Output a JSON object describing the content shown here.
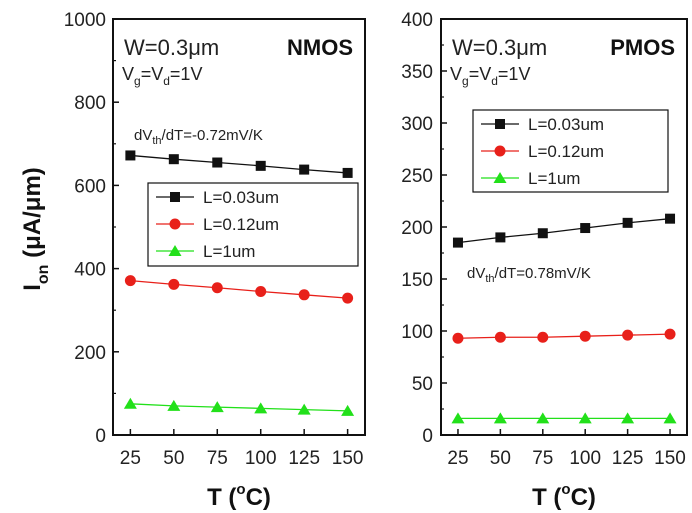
{
  "chart_data": [
    {
      "type": "line",
      "title": "NMOS",
      "x": [
        25,
        50,
        75,
        100,
        125,
        150
      ],
      "xlim": [
        15,
        160
      ],
      "ylim": [
        0,
        1000
      ],
      "x_ticks": [
        "25",
        "50",
        "75",
        "100",
        "125",
        "150"
      ],
      "y_ticks": [
        "0",
        "200",
        "400",
        "600",
        "800",
        "1000"
      ],
      "ylabel_main": "I",
      "ylabel_sub": "on",
      "ylabel_unit": "(μA/μm)",
      "xlabel_main": "T (",
      "xlabel_sup": "o",
      "xlabel_unit": "C)",
      "width_text": "W=0.3μm",
      "bias_parts": [
        "V",
        "g",
        "=V",
        "d",
        "=1V"
      ],
      "slope_parts": [
        "dV",
        "th",
        "/dT=-0.72mV/K"
      ],
      "legend_position": "middle-right",
      "series": [
        {
          "name": "L=0.03um",
          "color": "#111111",
          "marker": "square",
          "values": [
            672,
            663,
            655,
            647,
            638,
            630
          ]
        },
        {
          "name": "L=0.12um",
          "color": "#e8201a",
          "marker": "circle",
          "values": [
            371,
            362,
            354,
            345,
            337,
            329
          ]
        },
        {
          "name": "L=1um",
          "color": "#22e01a",
          "marker": "triangle",
          "values": [
            75,
            70,
            67,
            64,
            61,
            58
          ]
        }
      ]
    },
    {
      "type": "line",
      "title": "PMOS",
      "x": [
        25,
        50,
        75,
        100,
        125,
        150
      ],
      "xlim": [
        15,
        160
      ],
      "ylim": [
        0,
        400
      ],
      "x_ticks": [
        "25",
        "50",
        "75",
        "100",
        "125",
        "150"
      ],
      "y_ticks": [
        "0",
        "50",
        "100",
        "150",
        "200",
        "250",
        "300",
        "350",
        "400"
      ],
      "xlabel_main": "T (",
      "xlabel_sup": "o",
      "xlabel_unit": "C)",
      "width_text": "W=0.3μm",
      "bias_parts": [
        "V",
        "g",
        "=V",
        "d",
        "=1V"
      ],
      "slope_parts": [
        "dV",
        "th",
        "/dT=0.78mV/K"
      ],
      "legend_position": "top-right",
      "series": [
        {
          "name": "L=0.03um",
          "color": "#111111",
          "marker": "square",
          "values": [
            185,
            190,
            194,
            199,
            204,
            208
          ]
        },
        {
          "name": "L=0.12um",
          "color": "#e8201a",
          "marker": "circle",
          "values": [
            93,
            94,
            94,
            95,
            96,
            97
          ]
        },
        {
          "name": "L=1um",
          "color": "#22e01a",
          "marker": "triangle",
          "values": [
            16,
            16,
            16,
            16,
            16,
            16
          ]
        }
      ]
    }
  ]
}
